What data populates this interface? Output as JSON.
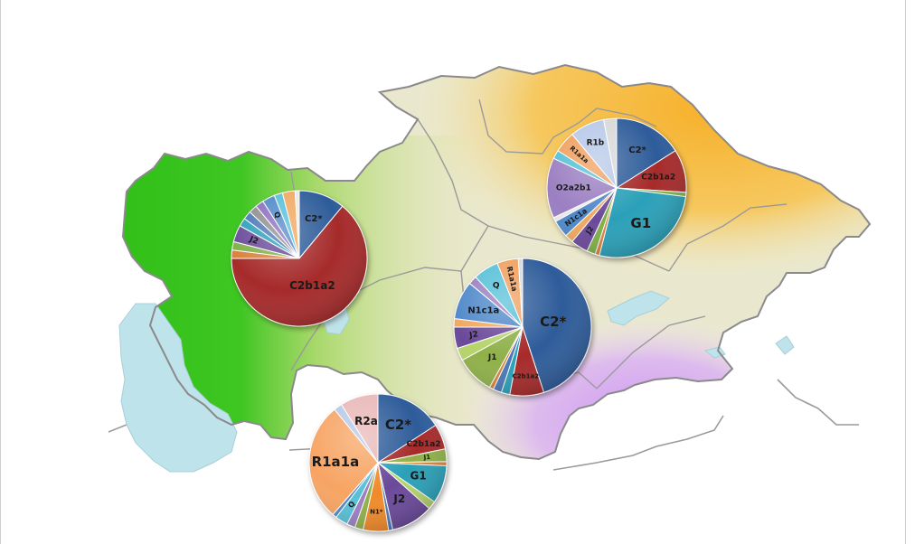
{
  "colors": {
    "west_region": "#2fbf17",
    "north_east_region": "#f7b733",
    "south_region": "#d7a6f0",
    "central_region": "#e9e6b0",
    "water": "#bde3ea",
    "border": "#8a8a8a"
  },
  "charts": [
    {
      "id": "pie-west",
      "slices": [
        {
          "label": "C2*",
          "value": 11,
          "color": "#2f5b9a"
        },
        {
          "label": "C2b1a2",
          "value": 64,
          "color": "#a62b2b"
        },
        {
          "label": "",
          "value": 2,
          "color": "#d9813a"
        },
        {
          "label": "",
          "value": 2,
          "color": "#7fb04a"
        },
        {
          "label": "J2",
          "value": 4,
          "color": "#6b4a9a"
        },
        {
          "label": "",
          "value": 2,
          "color": "#2aa0b8"
        },
        {
          "label": "",
          "value": 2,
          "color": "#4a78b8"
        },
        {
          "label": "",
          "value": 2,
          "color": "#8e8e8e"
        },
        {
          "label": "",
          "value": 2,
          "color": "#8c6cc0"
        },
        {
          "label": "Q",
          "value": 3,
          "color": "#4f88c9"
        },
        {
          "label": "",
          "value": 2,
          "color": "#57c0d8"
        },
        {
          "label": "",
          "value": 3,
          "color": "#f0a860"
        },
        {
          "label": "",
          "value": 1,
          "color": "#e8e8e8"
        }
      ]
    },
    {
      "id": "pie-northeast",
      "slices": [
        {
          "label": "C2*",
          "value": 16,
          "color": "#2f5b9a"
        },
        {
          "label": "C2b1a2",
          "value": 10,
          "color": "#a62b2b"
        },
        {
          "label": "",
          "value": 1,
          "color": "#7fb04a"
        },
        {
          "label": "G1",
          "value": 27,
          "color": "#2aa0b8"
        },
        {
          "label": "",
          "value": 1,
          "color": "#d9813a"
        },
        {
          "label": "",
          "value": 2,
          "color": "#7fb04a"
        },
        {
          "label": "J2",
          "value": 4,
          "color": "#6b4a9a"
        },
        {
          "label": "",
          "value": 2,
          "color": "#f0a860"
        },
        {
          "label": "N1c1a",
          "value": 4,
          "color": "#4f88c9"
        },
        {
          "label": "",
          "value": 1,
          "color": "#e8e8e8"
        },
        {
          "label": "O2a2b1",
          "value": 14,
          "color": "#9b7fc2"
        },
        {
          "label": "",
          "value": 2,
          "color": "#57c0d8"
        },
        {
          "label": "R1a1a",
          "value": 5,
          "color": "#f0a060"
        },
        {
          "label": "R1b",
          "value": 8,
          "color": "#b7c8e8"
        },
        {
          "label": "",
          "value": 3,
          "color": "#d8d8d8"
        }
      ]
    },
    {
      "id": "pie-central",
      "slices": [
        {
          "label": "C2*",
          "value": 45,
          "color": "#2f5b9a"
        },
        {
          "label": "C2b1a2",
          "value": 8,
          "color": "#a62b2b"
        },
        {
          "label": "",
          "value": 2,
          "color": "#2aa0b8"
        },
        {
          "label": "",
          "value": 2,
          "color": "#4a78b8"
        },
        {
          "label": "",
          "value": 1,
          "color": "#d9813a"
        },
        {
          "label": "J1",
          "value": 9,
          "color": "#8fb04a"
        },
        {
          "label": "",
          "value": 3,
          "color": "#b5d46a"
        },
        {
          "label": "J2",
          "value": 5,
          "color": "#6b4a9a"
        },
        {
          "label": "",
          "value": 2,
          "color": "#f0a860"
        },
        {
          "label": "N1c1a",
          "value": 9,
          "color": "#4f88c9"
        },
        {
          "label": "",
          "value": 2,
          "color": "#9b7fc2"
        },
        {
          "label": "Q",
          "value": 6,
          "color": "#57c0d8"
        },
        {
          "label": "R1a1a",
          "value": 5,
          "color": "#f0a060"
        },
        {
          "label": "",
          "value": 1,
          "color": "#d8d8d8"
        }
      ]
    },
    {
      "id": "pie-south",
      "slices": [
        {
          "label": "C2*",
          "value": 16,
          "color": "#2f5b9a"
        },
        {
          "label": "C2b1a2",
          "value": 6,
          "color": "#a62b2b"
        },
        {
          "label": "J1",
          "value": 3,
          "color": "#8fb04a"
        },
        {
          "label": "",
          "value": 1,
          "color": "#d9813a"
        },
        {
          "label": "G1",
          "value": 9,
          "color": "#2aa0b8"
        },
        {
          "label": "",
          "value": 2,
          "color": "#b5d46a"
        },
        {
          "label": "J2",
          "value": 10,
          "color": "#6b4a9a"
        },
        {
          "label": "",
          "value": 1,
          "color": "#4a78b8"
        },
        {
          "label": "N1*",
          "value": 6,
          "color": "#f08a2a"
        },
        {
          "label": "",
          "value": 2,
          "color": "#8fb04a"
        },
        {
          "label": "",
          "value": 2,
          "color": "#9b7fc2"
        },
        {
          "label": "Q",
          "value": 3,
          "color": "#57c0d8"
        },
        {
          "label": "",
          "value": 1,
          "color": "#4f88c9"
        },
        {
          "label": "R1a1a",
          "value": 28,
          "color": "#f7a464"
        },
        {
          "label": "",
          "value": 2,
          "color": "#b7c8e8"
        },
        {
          "label": "R2a",
          "value": 9,
          "color": "#e9b8b8"
        }
      ]
    }
  ]
}
